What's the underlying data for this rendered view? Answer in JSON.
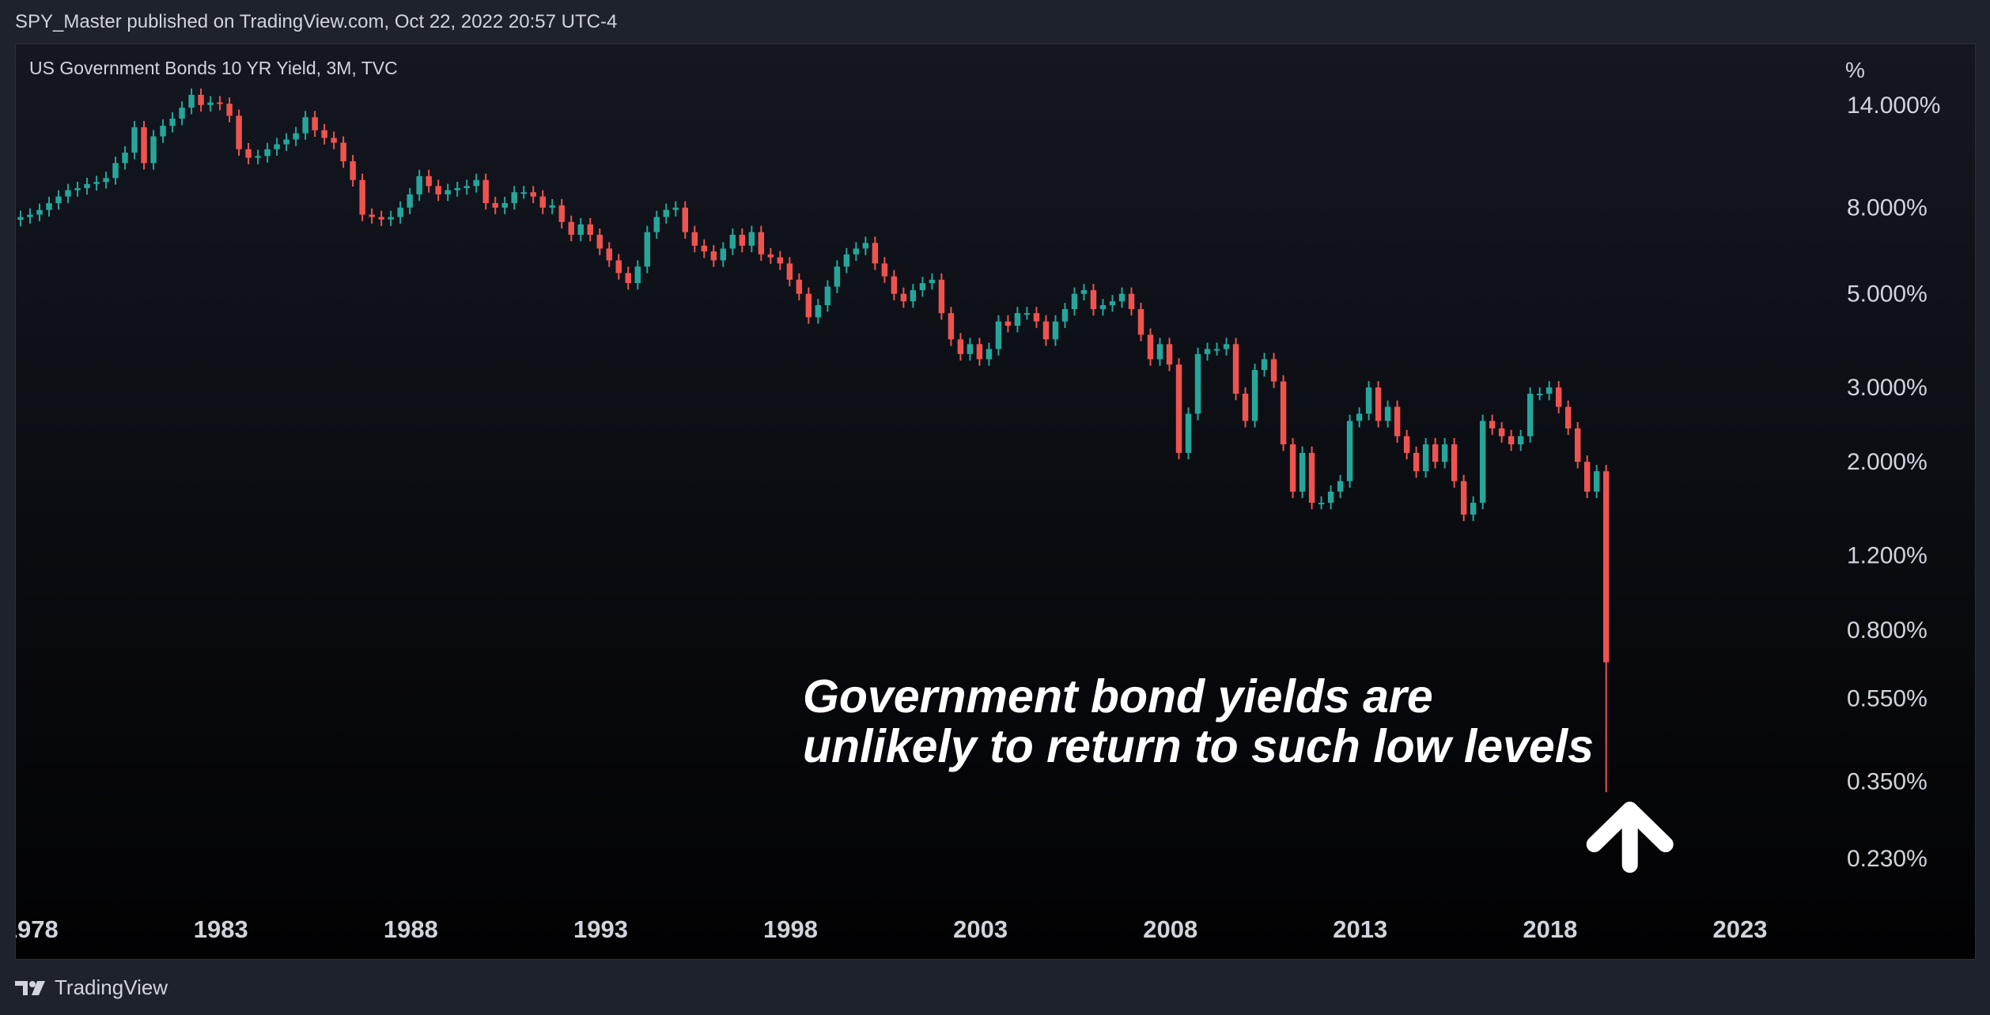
{
  "header": {
    "attribution": "SPY_Master published on TradingView.com, Oct 22, 2022 20:57 UTC-4"
  },
  "footer": {
    "brand": "TradingView",
    "logo_icon": "tradingview-logo-icon"
  },
  "colors": {
    "up": "#26a69a",
    "down": "#ef5350",
    "text": "#d1d4dc",
    "annotation": "#ffffff",
    "background": "#1e222d"
  },
  "chart_data": {
    "type": "candlestick",
    "title": "US Government Bonds 10 YR Yield, 3M, TVC",
    "y_unit": "%",
    "y_scale": "log",
    "ylim": [
      0.17,
      19.5
    ],
    "xlim": [
      1977.6,
      2025.5
    ],
    "y_ticks": [
      {
        "value": 14,
        "label": "14.000%"
      },
      {
        "value": 8,
        "label": "8.000%"
      },
      {
        "value": 5,
        "label": "5.000%"
      },
      {
        "value": 3,
        "label": "3.000%"
      },
      {
        "value": 2,
        "label": "2.000%"
      },
      {
        "value": 1.2,
        "label": "1.200%"
      },
      {
        "value": 0.8,
        "label": "0.800%"
      },
      {
        "value": 0.55,
        "label": "0.550%"
      },
      {
        "value": 0.35,
        "label": "0.350%"
      },
      {
        "value": 0.23,
        "label": "0.230%"
      }
    ],
    "x_ticks": [
      {
        "value": 1978,
        "label": "1978"
      },
      {
        "value": 1983,
        "label": "1983"
      },
      {
        "value": 1988,
        "label": "1988"
      },
      {
        "value": 1993,
        "label": "1993"
      },
      {
        "value": 1998,
        "label": "1998"
      },
      {
        "value": 2003,
        "label": "2003"
      },
      {
        "value": 2008,
        "label": "2008"
      },
      {
        "value": 2013,
        "label": "2013"
      },
      {
        "value": 2018,
        "label": "2018"
      },
      {
        "value": 2023,
        "label": "2023"
      }
    ],
    "annotation": {
      "lines": [
        "Government bond yields are",
        "unlikely to return to such low levels"
      ],
      "arrow_icon": "up-arrow-icon",
      "points_to": {
        "x": 2020.1,
        "y": 0.33
      }
    },
    "closes": [
      7.6,
      7.7,
      7.9,
      8.2,
      8.5,
      8.8,
      8.9,
      9.1,
      9.2,
      9.4,
      10.2,
      10.8,
      12.4,
      10.2,
      11.8,
      12.5,
      13.0,
      13.8,
      14.8,
      14.0,
      14.2,
      14.1,
      13.2,
      11.0,
      10.5,
      10.6,
      11.0,
      11.3,
      11.6,
      12.0,
      13.1,
      12.2,
      11.7,
      11.4,
      10.3,
      9.3,
      7.7,
      7.6,
      7.5,
      7.6,
      8.0,
      8.6,
      9.5,
      9.0,
      8.6,
      8.8,
      8.9,
      9.0,
      9.3,
      8.2,
      8.0,
      8.2,
      8.7,
      8.7,
      8.5,
      8.0,
      8.1,
      7.4,
      6.9,
      7.3,
      6.9,
      6.4,
      6.0,
      5.6,
      5.3,
      5.8,
      7.0,
      7.6,
      7.9,
      8.0,
      7.0,
      6.5,
      6.3,
      6.0,
      6.4,
      6.9,
      6.5,
      7.0,
      6.2,
      6.1,
      5.9,
      5.4,
      5.0,
      4.4,
      4.7,
      5.2,
      5.8,
      6.2,
      6.4,
      6.6,
      5.9,
      5.5,
      5.0,
      4.8,
      5.1,
      5.3,
      5.4,
      4.5,
      3.9,
      3.6,
      3.8,
      3.5,
      3.7,
      4.3,
      4.2,
      4.5,
      4.5,
      4.3,
      3.9,
      4.3,
      4.6,
      5.0,
      5.1,
      4.6,
      4.7,
      4.8,
      5.0,
      4.6,
      4.0,
      3.5,
      3.8,
      3.4,
      2.1,
      2.6,
      3.6,
      3.7,
      3.7,
      3.8,
      2.9,
      2.5,
      3.3,
      3.5,
      3.1,
      2.2,
      1.7,
      2.1,
      1.6,
      1.6,
      1.7,
      1.8,
      2.5,
      2.6,
      3.0,
      2.5,
      2.7,
      2.3,
      2.1,
      1.9,
      2.2,
      2.0,
      2.2,
      1.8,
      1.5,
      1.6,
      2.5,
      2.4,
      2.3,
      2.2,
      2.3,
      2.9,
      2.9,
      3.0,
      2.7,
      2.4,
      2.0,
      1.7,
      1.9,
      0.67
    ]
  }
}
